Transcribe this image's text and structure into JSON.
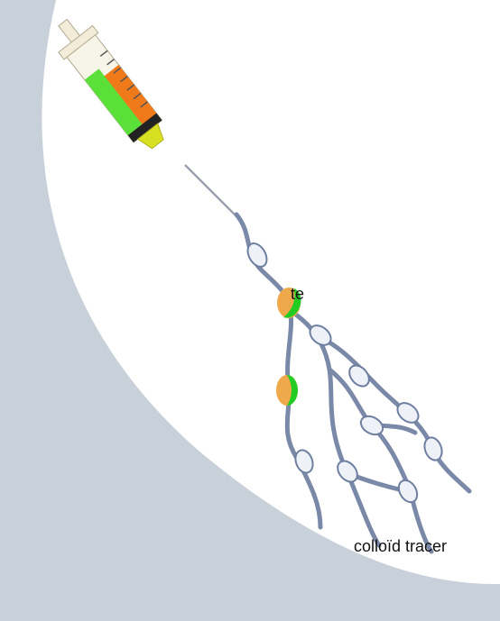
{
  "labels": {
    "left_fragment": "te",
    "tracer": "colloïd tracer"
  }
}
